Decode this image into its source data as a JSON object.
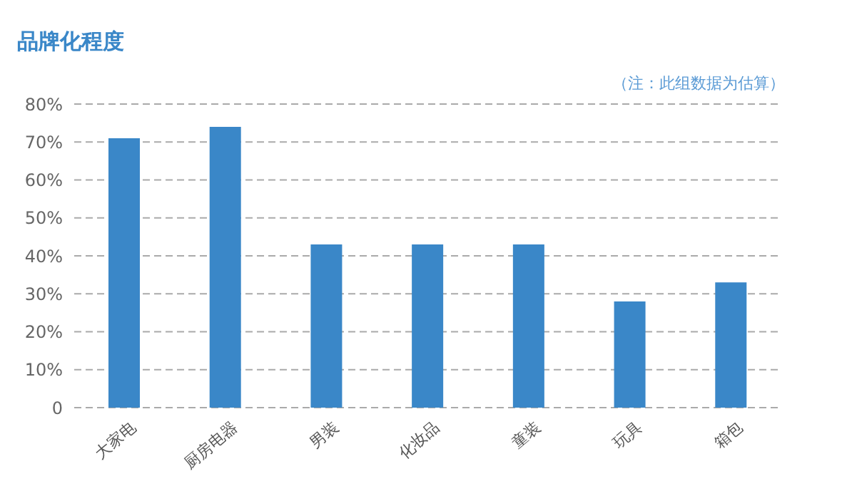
{
  "chart_data": {
    "type": "bar",
    "title": "品牌化程度",
    "annotations": [
      "（注：此组数据为估算）"
    ],
    "categories": [
      "大家电",
      "厨房电器",
      "男装",
      "化妆品",
      "童装",
      "玩具",
      "箱包"
    ],
    "values": [
      71,
      74,
      43,
      43,
      43,
      28,
      33
    ],
    "color": "#3a87c8",
    "ylim": [
      0,
      80
    ],
    "yticks": [
      {
        "value": 0,
        "label": "0"
      },
      {
        "value": 10,
        "label": "10%"
      },
      {
        "value": 20,
        "label": "20%"
      },
      {
        "value": 30,
        "label": "30%"
      },
      {
        "value": 40,
        "label": "40%"
      },
      {
        "value": 50,
        "label": "50%"
      },
      {
        "value": 60,
        "label": "60%"
      },
      {
        "value": 70,
        "label": "70%"
      },
      {
        "value": 80,
        "label": "80%"
      }
    ],
    "grid": "y",
    "legend": false
  }
}
